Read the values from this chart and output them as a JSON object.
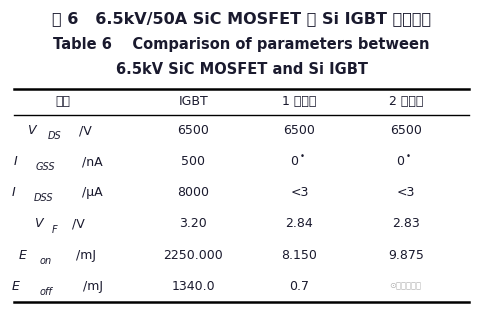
{
  "title_cn": "表 6   6.5kV/50A SiC MOSFET 与 Si IGBT 参数对比",
  "title_en_line1": "Table 6    Comparison of parameters between",
  "title_en_line2": "6.5kV SiC MOSFET and Si IGBT",
  "col_headers": [
    "参数",
    "IGBT",
    "1 号模块",
    "2 号模块"
  ],
  "rows": [
    [
      "VDS/V",
      "6500",
      "6500",
      "6500"
    ],
    [
      "IGSS/nA",
      "500",
      "0*",
      "0*"
    ],
    [
      "IDSS/μA",
      "8000",
      "<3",
      "<3"
    ],
    [
      "VF/V",
      "3.20",
      "2.84",
      "2.83"
    ],
    [
      "Eon/mJ",
      "2250.000",
      "8.150",
      "9.875"
    ],
    [
      "Eoff/mJ",
      "1340.0",
      "0.7",
      ""
    ]
  ],
  "row_param_labels": [
    {
      "pre": "V",
      "sub": "DS",
      "post": "/V"
    },
    {
      "pre": "I",
      "sub": "GSS",
      "post": "/nA"
    },
    {
      "pre": "I",
      "sub": "DSS",
      "post": "/μA"
    },
    {
      "pre": "V",
      "sub": "F",
      "post": "/V"
    },
    {
      "pre": "E",
      "sub": "on",
      "post": "/mJ"
    },
    {
      "pre": "E",
      "sub": "off",
      "post": "/mJ"
    }
  ],
  "watermark": "⊙半导体在线",
  "bg_color": "#ffffff",
  "text_color": "#1a1a2e",
  "title_cn_fontsize": 11.5,
  "title_en_fontsize": 10.5,
  "header_fontsize": 9,
  "cell_fontsize": 9,
  "param_fontsize": 9
}
